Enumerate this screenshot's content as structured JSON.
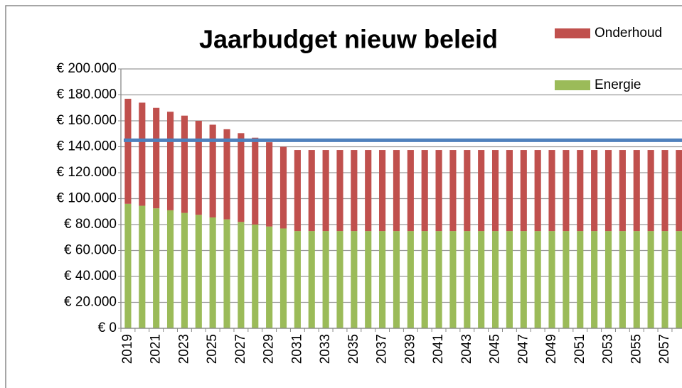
{
  "chart_data": {
    "type": "stacked_bar",
    "title": "Jaarbudget nieuw beleid",
    "categories": [
      "2019",
      null,
      "2021",
      null,
      "2023",
      null,
      "2025",
      null,
      "2027",
      null,
      "2029",
      null,
      "2031",
      null,
      "2033",
      null,
      "2035",
      null,
      "2037",
      null,
      "2039",
      null,
      "2041",
      null,
      "2043",
      null,
      "2045",
      null,
      "2047",
      null,
      "2049",
      null,
      "2051",
      null,
      "2053",
      null,
      "2055",
      null,
      "2057",
      null
    ],
    "series": [
      {
        "name": "Energie",
        "color": "#9bbb59",
        "values": [
          96000,
          94500,
          92500,
          91000,
          89000,
          87500,
          85500,
          84000,
          82000,
          80000,
          78500,
          77000,
          75000,
          75000,
          75000,
          75000,
          75000,
          75000,
          75000,
          75000,
          75000,
          75000,
          75000,
          75000,
          75000,
          75000,
          75000,
          75000,
          75000,
          75000,
          75000,
          75000,
          75000,
          75000,
          75000,
          75000,
          75000,
          75000,
          75000,
          75000
        ]
      },
      {
        "name": "Onderhoud",
        "color": "#c0504d",
        "values": [
          81000,
          79500,
          77500,
          76000,
          75000,
          72500,
          71500,
          69500,
          68500,
          67000,
          65000,
          63000,
          62500,
          62500,
          62500,
          62500,
          62500,
          62500,
          62500,
          62500,
          62500,
          62500,
          62500,
          62500,
          62500,
          62500,
          62500,
          62500,
          62500,
          62500,
          62500,
          62500,
          62500,
          62500,
          62500,
          62500,
          62500,
          62500,
          62500,
          62500
        ]
      }
    ],
    "reference_line": {
      "value": 145000,
      "color": "#4f81bd"
    },
    "ylim": [
      0,
      200000
    ],
    "yticks": [
      {
        "value": 0,
        "label": "€ 0"
      },
      {
        "value": 20000,
        "label": "€ 20.000"
      },
      {
        "value": 40000,
        "label": "€ 40.000"
      },
      {
        "value": 60000,
        "label": "€ 60.000"
      },
      {
        "value": 80000,
        "label": "€ 80.000"
      },
      {
        "value": 100000,
        "label": "€ 100.000"
      },
      {
        "value": 120000,
        "label": "€ 120.000"
      },
      {
        "value": 140000,
        "label": "€ 140.000"
      },
      {
        "value": 160000,
        "label": "€ 160.000"
      },
      {
        "value": 180000,
        "label": "€ 180.000"
      },
      {
        "value": 200000,
        "label": "€ 200.000"
      }
    ],
    "grid": true
  }
}
